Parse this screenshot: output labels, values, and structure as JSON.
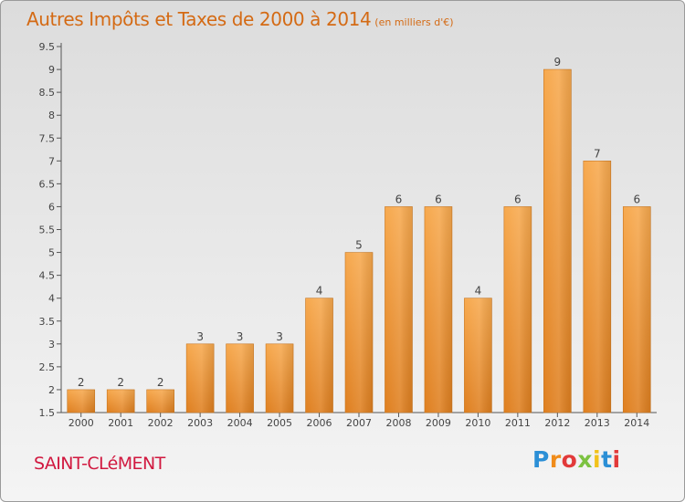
{
  "title": "Autres Impôts et Taxes de 2000 à 2014",
  "title_unit": "(en milliers d'€)",
  "commune": "SAINT-CLéMENT",
  "logo": {
    "letters": [
      "P",
      "r",
      "o",
      "x",
      "i",
      "t",
      "i"
    ],
    "colors": [
      "#2b8fd6",
      "#f08c1a",
      "#e23a3a",
      "#7cc241",
      "#f2c21a",
      "#2b8fd6",
      "#e23a3a"
    ]
  },
  "colors": {
    "title": "#d46a14",
    "commune": "#d1183f",
    "bar_light": "#f7a94e",
    "bar_dark": "#df7f1f"
  },
  "chart_data": {
    "type": "bar",
    "categories": [
      "2000",
      "2001",
      "2002",
      "2003",
      "2004",
      "2005",
      "2006",
      "2007",
      "2008",
      "2009",
      "2010",
      "2011",
      "2012",
      "2013",
      "2014"
    ],
    "values": [
      2,
      2,
      2,
      3,
      3,
      3,
      4,
      5,
      6,
      6,
      4,
      6,
      9,
      7,
      6
    ],
    "data_labels": [
      "2",
      "2",
      "2",
      "3",
      "3",
      "3",
      "4",
      "5",
      "6",
      "6",
      "4",
      "6",
      "9",
      "7",
      "6"
    ],
    "ylim": [
      1.5,
      9.5
    ],
    "yticks": [
      "1.5",
      "2",
      "2.5",
      "3",
      "3.5",
      "4",
      "4.5",
      "5",
      "5.5",
      "6",
      "6.5",
      "7",
      "7.5",
      "8",
      "8.5",
      "9",
      "9.5"
    ],
    "grid": false,
    "legend": "none"
  }
}
